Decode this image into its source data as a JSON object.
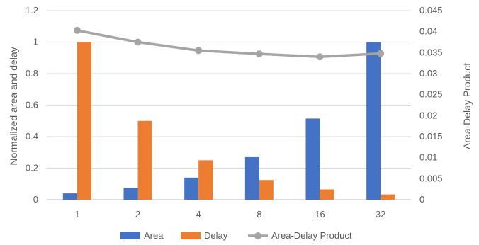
{
  "chart_data": {
    "type": "bar",
    "categories": [
      "1",
      "2",
      "4",
      "8",
      "16",
      "32"
    ],
    "series": [
      {
        "name": "Area",
        "kind": "bar",
        "axis": "left",
        "color": "#4472C4",
        "values": [
          0.04,
          0.075,
          0.14,
          0.27,
          0.515,
          1.0
        ]
      },
      {
        "name": "Delay",
        "kind": "bar",
        "axis": "left",
        "color": "#ED7D31",
        "values": [
          1.0,
          0.5,
          0.25,
          0.125,
          0.065,
          0.033
        ]
      },
      {
        "name": "Area-Delay Product",
        "kind": "line",
        "axis": "right",
        "color": "#A5A5A5",
        "values": [
          0.0403,
          0.0375,
          0.0355,
          0.0347,
          0.034,
          0.0348
        ]
      }
    ],
    "ylabel": "Normalized area and delay",
    "ylim": [
      0,
      1.2
    ],
    "y_ticks": [
      "0",
      "0.2",
      "0.4",
      "0.6",
      "0.8",
      "1",
      "1.2"
    ],
    "y2label": "Area-Delay Product",
    "y2lim": [
      0,
      0.045
    ],
    "y2_ticks": [
      "0",
      "0.005",
      "0.01",
      "0.015",
      "0.02",
      "0.025",
      "0.03",
      "0.035",
      "0.04",
      "0.045"
    ],
    "grid": true,
    "legend": "bottom"
  }
}
